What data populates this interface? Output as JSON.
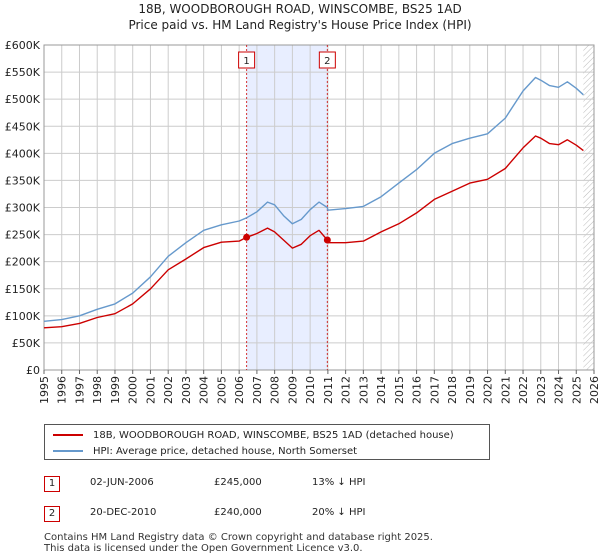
{
  "title": "18B, WOODBOROUGH ROAD, WINSCOMBE, BS25 1AD",
  "subtitle": "Price paid vs. HM Land Registry's House Price Index (HPI)",
  "colors": {
    "red": "#cc0000",
    "blue": "#6699cc",
    "shade": "#e8eeff",
    "grid": "#cccccc"
  },
  "chart_data": {
    "type": "line",
    "title": "18B, WOODBOROUGH ROAD, WINSCOMBE, BS25 1AD",
    "xlim": [
      1995,
      2026
    ],
    "ylim": [
      0,
      600000
    ],
    "x_ticks": [
      "1995",
      "1996",
      "1997",
      "1998",
      "1999",
      "2000",
      "2001",
      "2002",
      "2003",
      "2004",
      "2005",
      "2006",
      "2007",
      "2008",
      "2009",
      "2010",
      "2011",
      "2012",
      "2013",
      "2014",
      "2015",
      "2016",
      "2017",
      "2018",
      "2019",
      "2020",
      "2021",
      "2022",
      "2023",
      "2024",
      "2025",
      "2026"
    ],
    "y_ticks": [
      {
        "value": 0,
        "label": "£0"
      },
      {
        "value": 50000,
        "label": "£50K"
      },
      {
        "value": 100000,
        "label": "£100K"
      },
      {
        "value": 150000,
        "label": "£150K"
      },
      {
        "value": 200000,
        "label": "£200K"
      },
      {
        "value": 250000,
        "label": "£250K"
      },
      {
        "value": 300000,
        "label": "£300K"
      },
      {
        "value": 350000,
        "label": "£350K"
      },
      {
        "value": 400000,
        "label": "£400K"
      },
      {
        "value": 450000,
        "label": "£450K"
      },
      {
        "value": 500000,
        "label": "£500K"
      },
      {
        "value": 550000,
        "label": "£550K"
      },
      {
        "value": 600000,
        "label": "£600K"
      }
    ],
    "series": [
      {
        "name": "18B, WOODBOROUGH ROAD, WINSCOMBE, BS25 1AD (detached house)",
        "color": "#cc0000",
        "x": [
          1995,
          1996,
          1997,
          1998,
          1999,
          2000,
          2001,
          2002,
          2003,
          2004,
          2005,
          2006,
          2006.42,
          2007,
          2007.6,
          2008,
          2008.5,
          2009,
          2009.5,
          2010,
          2010.5,
          2010.97,
          2011,
          2012,
          2013,
          2014,
          2015,
          2016,
          2017,
          2018,
          2019,
          2020,
          2021,
          2022,
          2022.7,
          2023,
          2023.5,
          2024,
          2024.5,
          2025,
          2025.4
        ],
        "y": [
          78000,
          80000,
          86000,
          97000,
          104000,
          122000,
          150000,
          185000,
          205000,
          226000,
          236000,
          238000,
          245000,
          252000,
          262000,
          255000,
          240000,
          225000,
          232000,
          248000,
          258000,
          240000,
          235000,
          235000,
          238000,
          255000,
          270000,
          290000,
          315000,
          330000,
          345000,
          352000,
          372000,
          410000,
          432000,
          428000,
          418000,
          416000,
          425000,
          415000,
          405000
        ]
      },
      {
        "name": "HPI: Average price, detached house, North Somerset",
        "color": "#6699cc",
        "x": [
          1995,
          1996,
          1997,
          1998,
          1999,
          2000,
          2001,
          2002,
          2003,
          2004,
          2005,
          2006,
          2006.42,
          2007,
          2007.6,
          2008,
          2008.5,
          2009,
          2009.5,
          2010,
          2010.5,
          2010.97,
          2011,
          2012,
          2013,
          2014,
          2015,
          2016,
          2017,
          2018,
          2019,
          2020,
          2021,
          2022,
          2022.7,
          2023,
          2023.5,
          2024,
          2024.5,
          2025,
          2025.4
        ],
        "y": [
          90000,
          93000,
          100000,
          112000,
          122000,
          142000,
          172000,
          210000,
          235000,
          258000,
          268000,
          275000,
          281000,
          292000,
          310000,
          305000,
          285000,
          270000,
          278000,
          296000,
          310000,
          300000,
          295000,
          298000,
          302000,
          320000,
          345000,
          370000,
          400000,
          418000,
          428000,
          436000,
          465000,
          515000,
          540000,
          535000,
          525000,
          522000,
          532000,
          520000,
          508000
        ]
      }
    ],
    "annotations": [
      {
        "label": "1",
        "x": 2006.42,
        "y": 245000
      },
      {
        "label": "2",
        "x": 2010.97,
        "y": 240000
      }
    ],
    "shaded_range": [
      2006.42,
      2010.97
    ],
    "hatched_from": 2025.4
  },
  "legend": {
    "red": "18B, WOODBOROUGH ROAD, WINSCOMBE, BS25 1AD (detached house)",
    "blue": "HPI: Average price, detached house, North Somerset"
  },
  "transactions": [
    {
      "badge": "1",
      "date": "02-JUN-2006",
      "price": "£245,000",
      "hpi": "13% ↓ HPI"
    },
    {
      "badge": "2",
      "date": "20-DEC-2010",
      "price": "£240,000",
      "hpi": "20% ↓ HPI"
    }
  ],
  "footer": {
    "line1": "Contains HM Land Registry data © Crown copyright and database right 2025.",
    "line2": "This data is licensed under the Open Government Licence v3.0."
  }
}
